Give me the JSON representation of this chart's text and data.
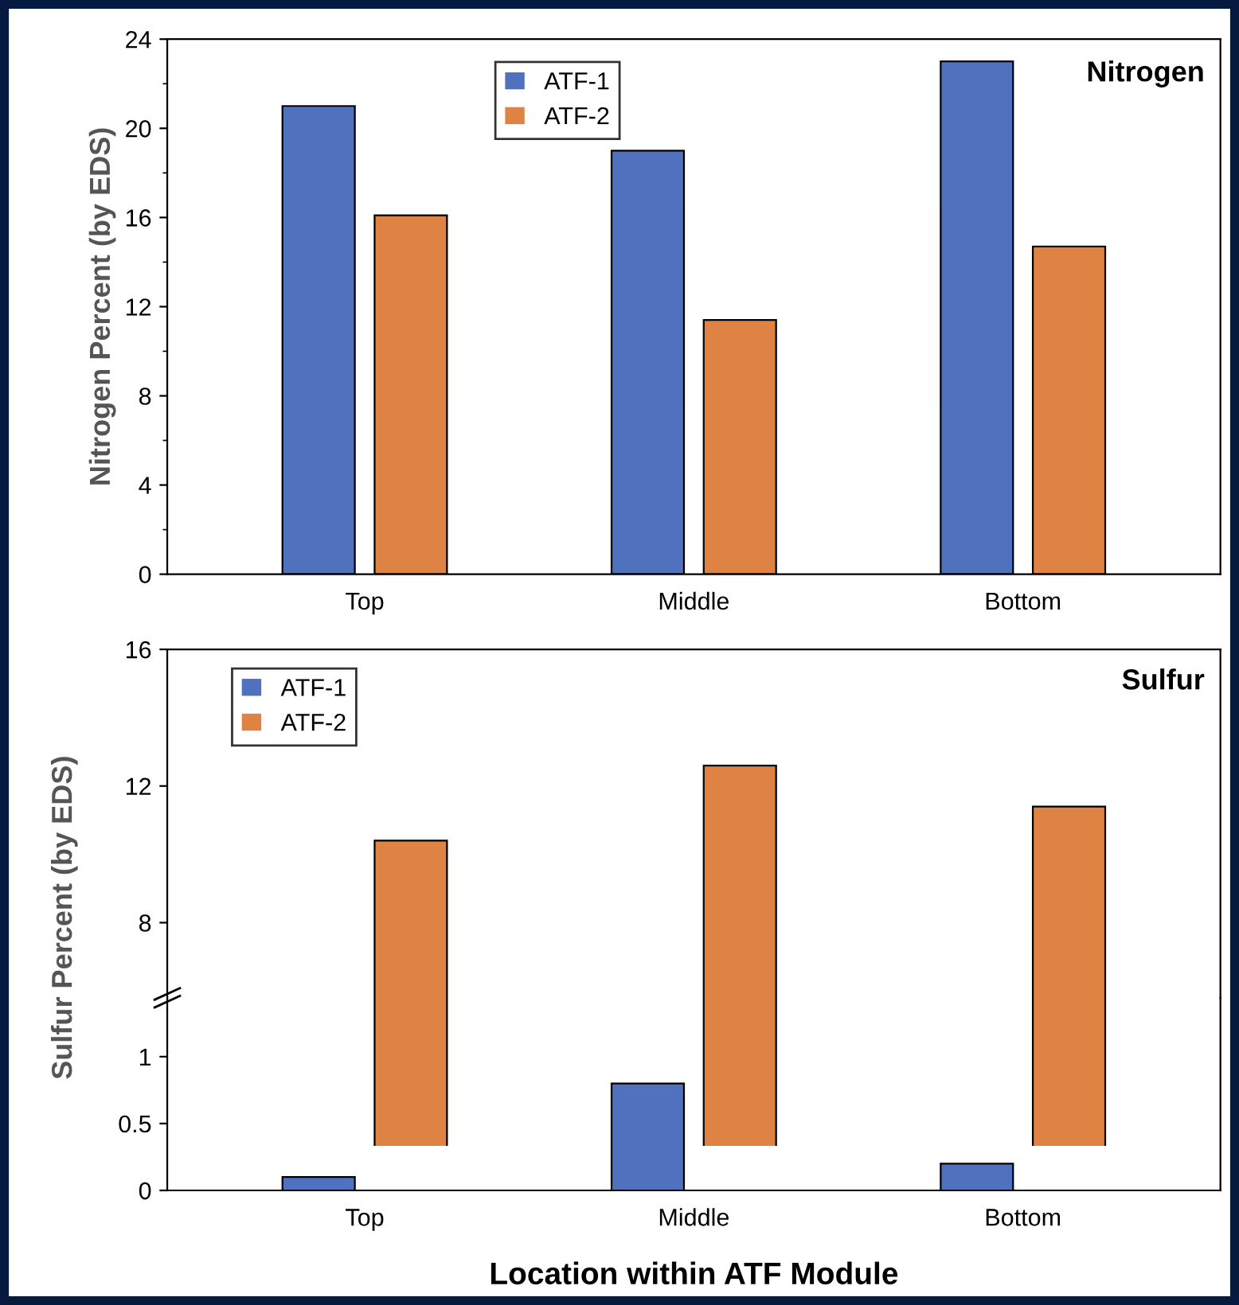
{
  "chart_data": [
    {
      "type": "bar",
      "title": "Nitrogen",
      "ylabel": "Nitrogen Percent (by EDS)",
      "categories": [
        "Top",
        "Middle",
        "Bottom"
      ],
      "series": [
        {
          "name": "ATF-1",
          "color": "#4f71be",
          "values": [
            21,
            19,
            23
          ]
        },
        {
          "name": "ATF-2",
          "color": "#de8344",
          "values": [
            16.1,
            11.4,
            14.7
          ]
        }
      ],
      "ylim": [
        0,
        24
      ],
      "yticks": [
        0,
        4,
        8,
        12,
        16,
        20,
        24
      ],
      "legend": "top left",
      "grid": false
    },
    {
      "type": "bar",
      "title": "Sulfur",
      "ylabel": "Sulfur Percent (by EDS)",
      "categories": [
        null,
        null,
        null
      ],
      "series": [
        {
          "name": "ATF-1",
          "color": "#4f71be",
          "values": [
            null,
            null,
            null
          ]
        },
        {
          "name": "ATF-2",
          "color": "#de8344",
          "values": [
            10.4,
            12.6,
            11.4
          ]
        }
      ],
      "ylim": [
        5.8,
        16
      ],
      "yticks": [
        8,
        12,
        16
      ],
      "legend": "top left",
      "tick_labels": "y",
      "grid": false
    },
    {
      "type": "bar",
      "xlabel": "Location within ATF Module",
      "categories": [
        "Top",
        "Middle",
        "Bottom"
      ],
      "series": [
        {
          "color": "#4f71be",
          "values": [
            0.1,
            0.8,
            0.2
          ]
        },
        {
          "color": "#de8344",
          "values": [
            null,
            null,
            null
          ]
        }
      ],
      "ylim": [
        0,
        1.44
      ],
      "yticks": [
        0,
        0.5,
        1
      ],
      "grid": false
    }
  ]
}
